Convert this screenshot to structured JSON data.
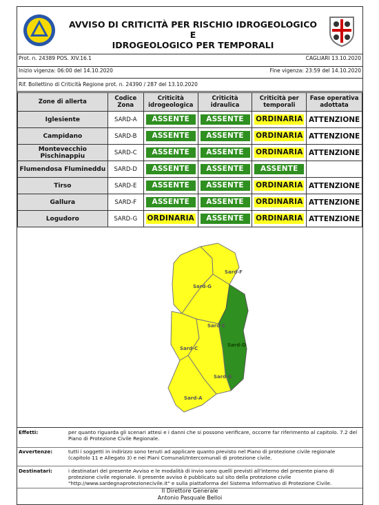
{
  "header": {
    "title_line1": "AVVISO DI CRITICITÀ PER RISCHIO IDROGEOLOGICO E",
    "title_line2": "IDROGEOLOGICO PER TEMPORALI",
    "logo_left_text": "REGIONE SARDEGNA",
    "logo_left_sub": "PROTEZIONE CIVILE"
  },
  "meta": {
    "prot": "Prot. n. 24389 POS. XIV.16.1",
    "place_date": "CAGLIARI 13.10.2020",
    "start": "Inizio vigenza: 06:00 del 14.10.2020",
    "end": "Fine vigenza: 23:59 del 14.10.2020",
    "ref": "Rif. Bollettino di Criticità Regione prot. n. 24390 / 287 del 13.10.2020"
  },
  "table": {
    "headers": [
      "Zone di allerta",
      "Codice Zona",
      "Criticità idrogeologica",
      "Criticità idraulica",
      "Criticità per temporali",
      "Fase operativa adottata"
    ],
    "rows": [
      {
        "zone": "Iglesiente",
        "code": "SARD-A",
        "hydro": "ASSENTE",
        "hydraulic": "ASSENTE",
        "storm": "ORDINARIA",
        "phase": "ATTENZIONE"
      },
      {
        "zone": "Campidano",
        "code": "SARD-B",
        "hydro": "ASSENTE",
        "hydraulic": "ASSENTE",
        "storm": "ORDINARIA",
        "phase": "ATTENZIONE"
      },
      {
        "zone": "Montevecchio Pischinappiu",
        "code": "SARD-C",
        "hydro": "ASSENTE",
        "hydraulic": "ASSENTE",
        "storm": "ORDINARIA",
        "phase": "ATTENZIONE"
      },
      {
        "zone": "Flumendosa Flumineddu",
        "code": "SARD-D",
        "hydro": "ASSENTE",
        "hydraulic": "ASSENTE",
        "storm": "ASSENTE",
        "phase": ""
      },
      {
        "zone": "Tirso",
        "code": "SARD-E",
        "hydro": "ASSENTE",
        "hydraulic": "ASSENTE",
        "storm": "ORDINARIA",
        "phase": "ATTENZIONE"
      },
      {
        "zone": "Gallura",
        "code": "SARD-F",
        "hydro": "ASSENTE",
        "hydraulic": "ASSENTE",
        "storm": "ORDINARIA",
        "phase": "ATTENZIONE"
      },
      {
        "zone": "Logudoro",
        "code": "SARD-G",
        "hydro": "ORDINARIA",
        "hydraulic": "ASSENTE",
        "storm": "ORDINARIA",
        "phase": "ATTENZIONE"
      }
    ]
  },
  "map": {
    "labels": [
      "Sard-G",
      "Sard-F",
      "Sard-E",
      "Sard-D",
      "Sard-C",
      "Sard-B",
      "Sard-A"
    ],
    "colors": {
      "yellow": "#ffff20",
      "green": "#2f8f20"
    }
  },
  "notes": {
    "effetti_label": "Effetti:",
    "effetti_text": "per quanto riguarda gli scenari attesi e i danni che si possono verificare, occorre far riferimento al capitolo. 7.2 del Piano di Protezione Civile Regionale.",
    "avvertenze_label": "Avvertenze:",
    "avvertenze_text": "tutti i soggetti in indirizzo sono tenuti ad applicare quanto previsto nel Piano di protezione civile regionale (capitolo 11 e Allegato 3) e nei Piani Comunali/Intercomunali di protezione civile.",
    "destinatari_label": "Destinatari:",
    "destinatari_text": "i destinatari del presente Avviso e le modalità di invio sono quelli previsti all'interno del presente piano di protezione civile regionale. Il presente avviso è pubblicato sul sito della protezione civile \"http://www.sardegnaprotezionecivile.it\" e sulla piattaforma del Sistema Informativo di Protezione Civile."
  },
  "signature": {
    "line1": "Il Direttore Generale",
    "line2": "Antonio Pasquale Belloi"
  }
}
